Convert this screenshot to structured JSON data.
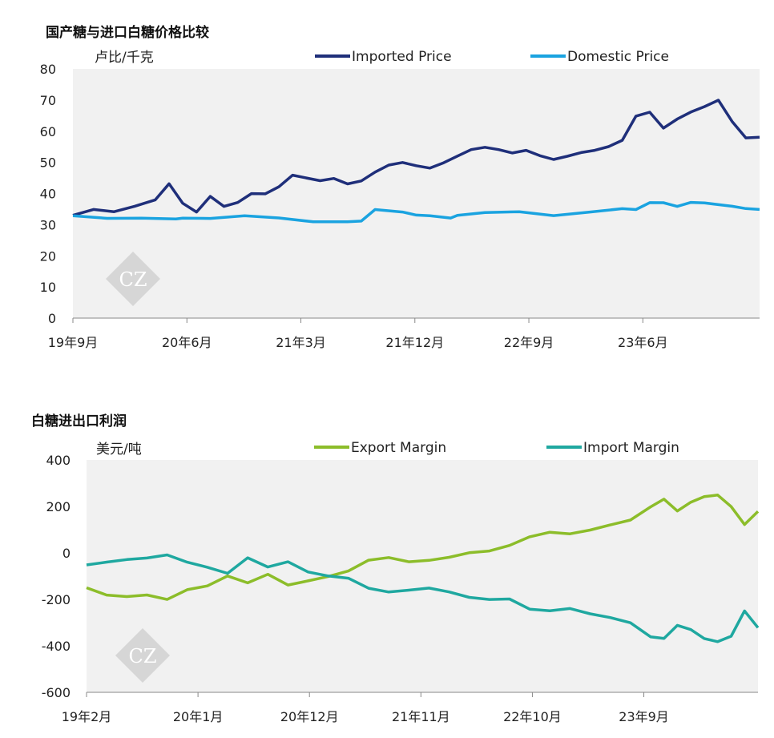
{
  "chart_data": [
    {
      "type": "line",
      "title": "国产糖与进口白糖价格比较",
      "ylabel": "卢比/千克",
      "ylim": [
        0,
        80
      ],
      "yticks": [
        0,
        10,
        20,
        30,
        40,
        50,
        60,
        70,
        80
      ],
      "xticks": [
        "19年9月",
        "20年6月",
        "21年3月",
        "21年12月",
        "22年9月",
        "23年6月"
      ],
      "grid": false,
      "legend": "top",
      "watermark": "CZ",
      "series": [
        {
          "name": "Imported Price",
          "color": "#1f2f7a",
          "x": [
            0,
            3,
            6,
            9,
            12,
            14,
            16,
            18,
            20,
            22,
            24,
            26,
            28,
            30,
            32,
            34,
            36,
            38,
            40,
            42,
            44,
            46,
            48,
            50,
            52,
            54,
            56,
            58,
            60,
            62,
            64,
            66,
            68,
            70,
            72,
            74,
            76,
            78,
            80,
            82,
            84,
            86,
            88,
            90,
            92,
            94,
            96,
            98,
            100
          ],
          "values": [
            33,
            35,
            34,
            36,
            38,
            43,
            37,
            34,
            39,
            36,
            37,
            40,
            40,
            42,
            46,
            45,
            44,
            45,
            43,
            44,
            47,
            49,
            50,
            49,
            48,
            50,
            52,
            54,
            55,
            54,
            53,
            54,
            52,
            51,
            52,
            53,
            54,
            55,
            57,
            65,
            66,
            61,
            64,
            66,
            68,
            70,
            63,
            58,
            58
          ]
        },
        {
          "name": "Domestic Price",
          "color": "#1aa3e0",
          "x": [
            0,
            5,
            10,
            15,
            16,
            20,
            25,
            30,
            35,
            40,
            42,
            44,
            48,
            50,
            52,
            55,
            56,
            60,
            65,
            70,
            75,
            80,
            82,
            84,
            86,
            88,
            90,
            92,
            96,
            98,
            100
          ],
          "values": [
            33,
            32,
            32,
            32,
            32,
            32,
            33,
            32,
            31,
            31,
            31,
            35,
            34,
            33,
            33,
            32,
            33,
            34,
            34,
            33,
            34,
            35,
            35,
            37,
            37,
            36,
            37,
            37,
            36,
            35,
            35
          ]
        }
      ]
    },
    {
      "type": "line",
      "title": "白糖进出口利润",
      "ylabel": "美元/吨",
      "ylim": [
        -600,
        400
      ],
      "yticks": [
        -600,
        -400,
        -200,
        0,
        200,
        400
      ],
      "xticks": [
        "19年2月",
        "20年1月",
        "20年12月",
        "21年11月",
        "22年10月",
        "23年9月"
      ],
      "grid": false,
      "legend": "top",
      "watermark": "CZ",
      "series": [
        {
          "name": "Export Margin",
          "color": "#8cbd2a",
          "x": [
            0,
            3,
            6,
            9,
            12,
            15,
            18,
            21,
            24,
            27,
            30,
            33,
            36,
            39,
            42,
            45,
            48,
            51,
            54,
            57,
            60,
            63,
            66,
            69,
            72,
            75,
            78,
            81,
            84,
            86,
            88,
            90,
            92,
            94,
            96,
            98,
            100
          ],
          "values": [
            -150,
            -180,
            -190,
            -180,
            -200,
            -160,
            -140,
            -100,
            -130,
            -90,
            -140,
            -120,
            -100,
            -80,
            -30,
            -20,
            -40,
            -30,
            -20,
            0,
            10,
            30,
            70,
            90,
            80,
            100,
            120,
            140,
            200,
            230,
            180,
            220,
            240,
            250,
            200,
            120,
            180
          ]
        },
        {
          "name": "Import Margin",
          "color": "#1fa8a0",
          "x": [
            0,
            3,
            6,
            9,
            12,
            15,
            18,
            21,
            24,
            27,
            30,
            33,
            36,
            39,
            42,
            45,
            48,
            51,
            54,
            57,
            60,
            63,
            66,
            69,
            72,
            75,
            78,
            81,
            84,
            86,
            88,
            90,
            92,
            94,
            96,
            98,
            100
          ],
          "values": [
            -50,
            -40,
            -30,
            -20,
            -10,
            -40,
            -60,
            -90,
            -20,
            -60,
            -40,
            -80,
            -100,
            -110,
            -150,
            -170,
            -160,
            -150,
            -170,
            -190,
            -200,
            -200,
            -240,
            -250,
            -240,
            -260,
            -280,
            -300,
            -360,
            -370,
            -310,
            -330,
            -370,
            -380,
            -360,
            -250,
            -320
          ]
        }
      ]
    }
  ]
}
